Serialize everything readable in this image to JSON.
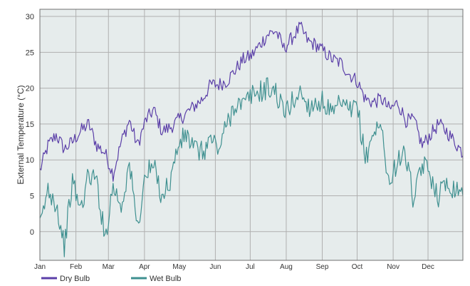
{
  "chart_data": {
    "type": "line",
    "ylabel": "External Temperature (°C)",
    "ylim": [
      -4,
      31
    ],
    "yticks": [
      0,
      5,
      10,
      15,
      20,
      25,
      30
    ],
    "grid": true,
    "legend_position": "bottom-left",
    "categories": [
      "Jan",
      "Feb",
      "Mar",
      "Apr",
      "May",
      "Jun",
      "Jul",
      "Aug",
      "Sep",
      "Oct",
      "Nov",
      "Dec"
    ],
    "x_unit": "day of year (1 = 1 Jan), sampled every 7 days",
    "x": [
      1,
      8,
      15,
      22,
      29,
      36,
      43,
      50,
      57,
      64,
      71,
      78,
      85,
      92,
      99,
      106,
      113,
      120,
      127,
      134,
      141,
      148,
      155,
      162,
      169,
      176,
      183,
      190,
      197,
      204,
      211,
      218,
      225,
      232,
      239,
      246,
      253,
      260,
      267,
      274,
      281,
      288,
      295,
      302,
      309,
      316,
      323,
      330,
      337,
      344,
      351,
      358,
      365
    ],
    "series": [
      {
        "name": "Dry Bulb",
        "color": "#5b3fa8",
        "values": [
          8.5,
          12.0,
          13.5,
          11.5,
          12.5,
          14.0,
          15.0,
          12.0,
          11.0,
          8.0,
          12.5,
          15.5,
          12.0,
          15.5,
          17.0,
          14.0,
          14.5,
          15.5,
          16.5,
          17.5,
          18.5,
          20.5,
          20.5,
          21.0,
          22.5,
          24.0,
          24.5,
          26.0,
          27.5,
          28.0,
          25.5,
          27.0,
          28.5,
          26.5,
          26.0,
          25.0,
          24.0,
          23.5,
          22.0,
          21.0,
          18.5,
          18.0,
          18.5,
          17.0,
          18.0,
          15.5,
          15.5,
          12.0,
          13.5,
          15.0,
          14.0,
          12.5,
          11.0
        ]
      },
      {
        "name": "Wet Bulb",
        "color": "#3f9090",
        "values": [
          0.5,
          6.0,
          4.0,
          -2.0,
          7.0,
          3.0,
          8.0,
          7.0,
          -1.0,
          6.5,
          3.5,
          9.5,
          0.5,
          8.0,
          9.0,
          5.0,
          7.0,
          12.0,
          13.5,
          11.5,
          11.0,
          13.0,
          11.5,
          15.0,
          18.0,
          17.5,
          19.0,
          19.5,
          20.0,
          19.5,
          16.5,
          18.0,
          19.5,
          17.5,
          18.0,
          18.0,
          16.0,
          18.0,
          16.5,
          17.5,
          10.0,
          14.0,
          14.5,
          6.0,
          10.5,
          10.5,
          4.0,
          9.5,
          8.0,
          5.0,
          7.0,
          6.0,
          6.0
        ]
      }
    ]
  },
  "colors": {
    "plot_background": "#e6ecec",
    "grid": "#b0b0b0",
    "frame": "#707070"
  }
}
